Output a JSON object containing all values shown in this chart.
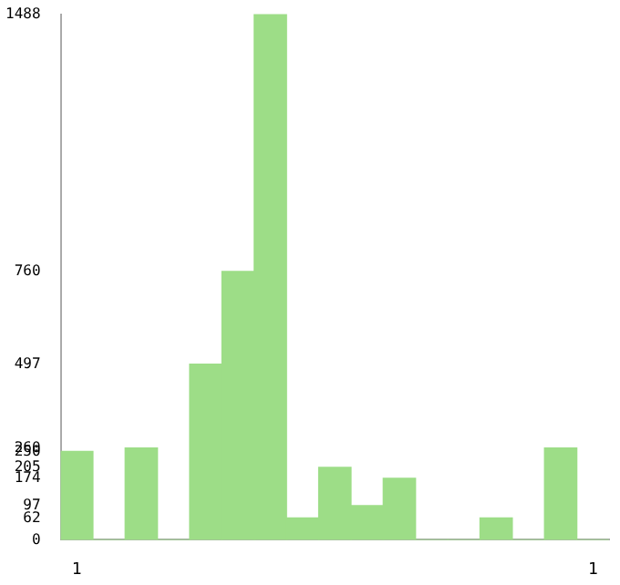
{
  "chart_data": {
    "type": "bar",
    "categories": [
      "1",
      null,
      null,
      null,
      null,
      null,
      null,
      null,
      null,
      null,
      null,
      null,
      null,
      null,
      null,
      null,
      "1"
    ],
    "values": [
      250,
      0,
      260,
      0,
      497,
      760,
      1488,
      62,
      205,
      97,
      174,
      0,
      0,
      62,
      0,
      260,
      0
    ],
    "color": "#9ddd87",
    "ylim": [
      0,
      1488
    ],
    "yticks": [
      0,
      62,
      97,
      174,
      205,
      250,
      260,
      497,
      760,
      1488
    ],
    "grid": false,
    "legend": false
  }
}
